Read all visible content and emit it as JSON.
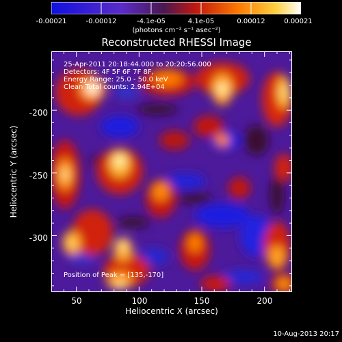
{
  "colorbar": {
    "ticks": [
      "-0.00021",
      "-0.00012",
      "-4.1e-05",
      "4.1e-05",
      "0.00012",
      "0.00021"
    ],
    "unit": "(photons cm⁻² s⁻¹ asec⁻²)",
    "colors": [
      "#1010e0",
      "#5a2cc8",
      "#a01010",
      "#ff5a00",
      "#ffd040",
      "#ffffff"
    ]
  },
  "chart_data": {
    "type": "heatmap",
    "title": "Reconstructed RHESSI Image",
    "xlabel": "Heliocentric X (arcsec)",
    "ylabel": "Heliocentric Y (arcsec)",
    "xlim": [
      30,
      222
    ],
    "ylim": [
      -345,
      -153
    ],
    "xticks": [
      "50",
      "100",
      "150",
      "200"
    ],
    "yticks": [
      "-200",
      "-250",
      "-300"
    ],
    "zlim": [
      -0.00021,
      0.00021
    ],
    "annotations": [
      "25-Apr-2011 20:18:44.000 to 20:20:56.000",
      "Detectors: 4F 5F 6F 7F 8F,",
      "Energy Range: 25.0 - 50.0 keV",
      "Clean    Total counts: 2.94E+04"
    ],
    "peak_label": "Position of Peak = [135,-170]",
    "peak": [
      135,
      -170
    ]
  },
  "footer": "10-Aug-2013 20:17"
}
